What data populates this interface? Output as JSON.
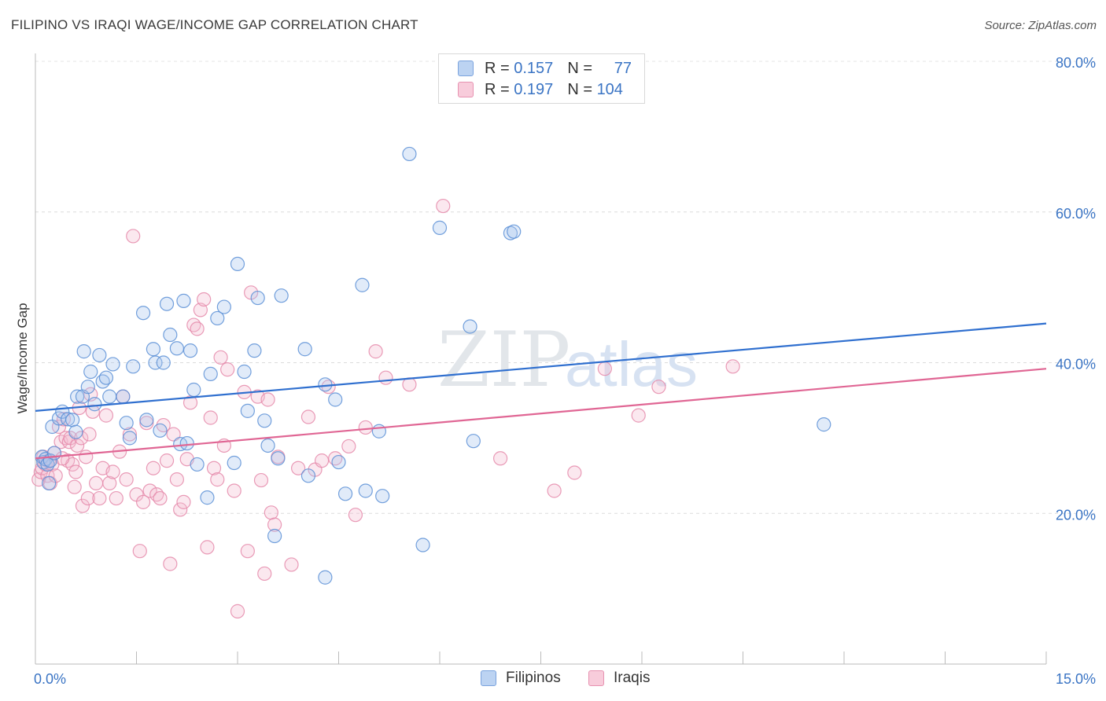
{
  "title": "FILIPINO VS IRAQI WAGE/INCOME GAP CORRELATION CHART",
  "source": "Source: ZipAtlas.com",
  "watermark": {
    "part1": "ZIP",
    "part2": "atlas"
  },
  "legend": {
    "rows": [
      {
        "r_label": "R =",
        "r_value": "0.157",
        "n_label": "N =",
        "n_value": "77"
      },
      {
        "r_label": "R =",
        "r_value": "0.197",
        "n_label": "N =",
        "n_value": "104"
      }
    ]
  },
  "bottom_legend": [
    "Filipinos",
    "Iraqis"
  ],
  "colors": {
    "blue": "#5b8fd6",
    "blue_fill": "#a9c6ee",
    "blue_line": "#2f6fcf",
    "pink": "#e58aaa",
    "pink_fill": "#f4bcd0",
    "pink_line": "#e06694",
    "axis_text": "#3a74c4"
  },
  "chart_data": {
    "type": "scatter",
    "title": "FILIPINO VS IRAQI WAGE/INCOME GAP CORRELATION CHART",
    "xlabel": "",
    "ylabel": "Wage/Income Gap",
    "xlim": [
      0,
      15
    ],
    "ylim": [
      0,
      80
    ],
    "x_tick_labels": [
      "0.0%",
      "15.0%"
    ],
    "y_ticks": [
      20,
      40,
      60,
      80
    ],
    "y_tick_labels": [
      "20.0%",
      "40.0%",
      "60.0%",
      "80.0%"
    ],
    "series": [
      {
        "name": "Filipinos",
        "R": 0.157,
        "N": 77,
        "trend": {
          "x": [
            0,
            15
          ],
          "y": [
            33.6,
            45.2
          ]
        },
        "points": [
          [
            0.1,
            27.5
          ],
          [
            0.12,
            26.8
          ],
          [
            0.15,
            27.2
          ],
          [
            0.18,
            26.5
          ],
          [
            0.2,
            24.0
          ],
          [
            0.22,
            27.0
          ],
          [
            0.25,
            31.5
          ],
          [
            0.28,
            28.0
          ],
          [
            0.35,
            32.6
          ],
          [
            0.4,
            33.5
          ],
          [
            0.48,
            32.5
          ],
          [
            0.55,
            32.4
          ],
          [
            0.6,
            30.8
          ],
          [
            0.62,
            35.5
          ],
          [
            0.7,
            35.5
          ],
          [
            0.72,
            41.5
          ],
          [
            0.78,
            36.8
          ],
          [
            0.82,
            38.8
          ],
          [
            0.88,
            34.5
          ],
          [
            0.95,
            41.0
          ],
          [
            1.0,
            37.5
          ],
          [
            1.05,
            38.0
          ],
          [
            1.1,
            35.5
          ],
          [
            1.15,
            39.8
          ],
          [
            1.3,
            35.5
          ],
          [
            1.35,
            32.0
          ],
          [
            1.4,
            30.0
          ],
          [
            1.45,
            39.5
          ],
          [
            1.6,
            46.6
          ],
          [
            1.65,
            32.4
          ],
          [
            1.75,
            41.8
          ],
          [
            1.78,
            40.0
          ],
          [
            1.85,
            31.0
          ],
          [
            1.9,
            40.0
          ],
          [
            1.95,
            47.8
          ],
          [
            2.0,
            43.7
          ],
          [
            2.1,
            41.9
          ],
          [
            2.15,
            29.2
          ],
          [
            2.2,
            48.2
          ],
          [
            2.25,
            29.3
          ],
          [
            2.3,
            41.6
          ],
          [
            2.35,
            36.4
          ],
          [
            2.4,
            26.5
          ],
          [
            2.55,
            22.1
          ],
          [
            2.6,
            38.5
          ],
          [
            2.7,
            45.9
          ],
          [
            2.8,
            47.4
          ],
          [
            2.95,
            26.7
          ],
          [
            3.0,
            53.1
          ],
          [
            3.1,
            38.8
          ],
          [
            3.15,
            33.6
          ],
          [
            3.25,
            41.6
          ],
          [
            3.3,
            48.6
          ],
          [
            3.4,
            32.3
          ],
          [
            3.45,
            29.0
          ],
          [
            3.6,
            27.3
          ],
          [
            3.65,
            48.9
          ],
          [
            4.0,
            41.8
          ],
          [
            4.05,
            25.0
          ],
          [
            4.3,
            37.1
          ],
          [
            4.45,
            35.1
          ],
          [
            4.5,
            26.8
          ],
          [
            4.6,
            22.6
          ],
          [
            4.85,
            50.3
          ],
          [
            4.9,
            23.0
          ],
          [
            5.15,
            22.3
          ],
          [
            5.1,
            30.9
          ],
          [
            5.55,
            67.7
          ],
          [
            5.75,
            15.8
          ],
          [
            6.0,
            57.9
          ],
          [
            6.45,
            44.8
          ],
          [
            6.5,
            29.6
          ],
          [
            7.05,
            57.2
          ],
          [
            7.1,
            57.4
          ],
          [
            11.7,
            31.8
          ],
          [
            3.55,
            17.0
          ],
          [
            4.3,
            11.5
          ]
        ]
      },
      {
        "name": "Iraqis",
        "R": 0.197,
        "N": 104,
        "trend": {
          "x": [
            0,
            15
          ],
          "y": [
            27.3,
            39.2
          ]
        },
        "points": [
          [
            0.05,
            24.5
          ],
          [
            0.08,
            25.5
          ],
          [
            0.1,
            26.0
          ],
          [
            0.12,
            27.5
          ],
          [
            0.15,
            26.5
          ],
          [
            0.18,
            25.0
          ],
          [
            0.2,
            27.0
          ],
          [
            0.22,
            24.0
          ],
          [
            0.25,
            26.5
          ],
          [
            0.28,
            28.0
          ],
          [
            0.3,
            25.0
          ],
          [
            0.35,
            31.5
          ],
          [
            0.38,
            29.5
          ],
          [
            0.42,
            32.5
          ],
          [
            0.45,
            30.0
          ],
          [
            0.48,
            27.0
          ],
          [
            0.5,
            29.5
          ],
          [
            0.52,
            30.0
          ],
          [
            0.55,
            26.5
          ],
          [
            0.58,
            23.5
          ],
          [
            0.6,
            25.5
          ],
          [
            0.62,
            29.0
          ],
          [
            0.65,
            34.0
          ],
          [
            0.68,
            30.0
          ],
          [
            0.7,
            21.0
          ],
          [
            0.75,
            27.5
          ],
          [
            0.78,
            22.0
          ],
          [
            0.8,
            30.5
          ],
          [
            0.82,
            35.8
          ],
          [
            0.85,
            33.5
          ],
          [
            0.9,
            24.0
          ],
          [
            0.95,
            22.0
          ],
          [
            1.0,
            26.0
          ],
          [
            1.05,
            33.0
          ],
          [
            1.1,
            24.0
          ],
          [
            1.15,
            25.5
          ],
          [
            1.2,
            22.0
          ],
          [
            1.25,
            28.2
          ],
          [
            1.3,
            35.5
          ],
          [
            1.35,
            24.5
          ],
          [
            1.4,
            30.5
          ],
          [
            1.45,
            56.8
          ],
          [
            1.5,
            22.5
          ],
          [
            1.55,
            15.0
          ],
          [
            1.6,
            21.5
          ],
          [
            1.65,
            32.0
          ],
          [
            1.7,
            23.0
          ],
          [
            1.75,
            26.0
          ],
          [
            1.8,
            22.5
          ],
          [
            1.85,
            22.0
          ],
          [
            1.9,
            31.7
          ],
          [
            1.95,
            27.0
          ],
          [
            2.0,
            13.3
          ],
          [
            2.05,
            30.5
          ],
          [
            2.1,
            24.5
          ],
          [
            2.15,
            20.5
          ],
          [
            2.2,
            21.5
          ],
          [
            2.25,
            27.2
          ],
          [
            2.3,
            34.7
          ],
          [
            2.35,
            45.0
          ],
          [
            2.4,
            44.5
          ],
          [
            2.45,
            47.0
          ],
          [
            2.5,
            48.4
          ],
          [
            2.55,
            15.5
          ],
          [
            2.6,
            32.7
          ],
          [
            2.65,
            26.0
          ],
          [
            2.7,
            24.5
          ],
          [
            2.75,
            40.7
          ],
          [
            2.8,
            29.0
          ],
          [
            2.85,
            39.1
          ],
          [
            2.95,
            23.0
          ],
          [
            3.0,
            7.0
          ],
          [
            3.1,
            36.1
          ],
          [
            3.15,
            15.0
          ],
          [
            3.2,
            49.3
          ],
          [
            3.3,
            35.5
          ],
          [
            3.35,
            24.4
          ],
          [
            3.4,
            12.0
          ],
          [
            3.45,
            35.1
          ],
          [
            3.5,
            20.1
          ],
          [
            3.55,
            18.5
          ],
          [
            3.6,
            27.5
          ],
          [
            3.8,
            13.2
          ],
          [
            3.9,
            26.0
          ],
          [
            4.05,
            32.8
          ],
          [
            4.15,
            25.8
          ],
          [
            4.25,
            27.0
          ],
          [
            4.35,
            36.8
          ],
          [
            4.45,
            27.3
          ],
          [
            4.65,
            28.9
          ],
          [
            4.75,
            19.8
          ],
          [
            4.9,
            31.4
          ],
          [
            5.05,
            41.5
          ],
          [
            5.2,
            38.0
          ],
          [
            5.55,
            37.1
          ],
          [
            6.05,
            60.8
          ],
          [
            6.9,
            27.3
          ],
          [
            7.7,
            23.0
          ],
          [
            8.0,
            25.4
          ],
          [
            8.45,
            39.2
          ],
          [
            8.95,
            33.0
          ],
          [
            9.25,
            36.8
          ],
          [
            10.35,
            39.5
          ],
          [
            0.4,
            27.3
          ]
        ]
      }
    ]
  }
}
